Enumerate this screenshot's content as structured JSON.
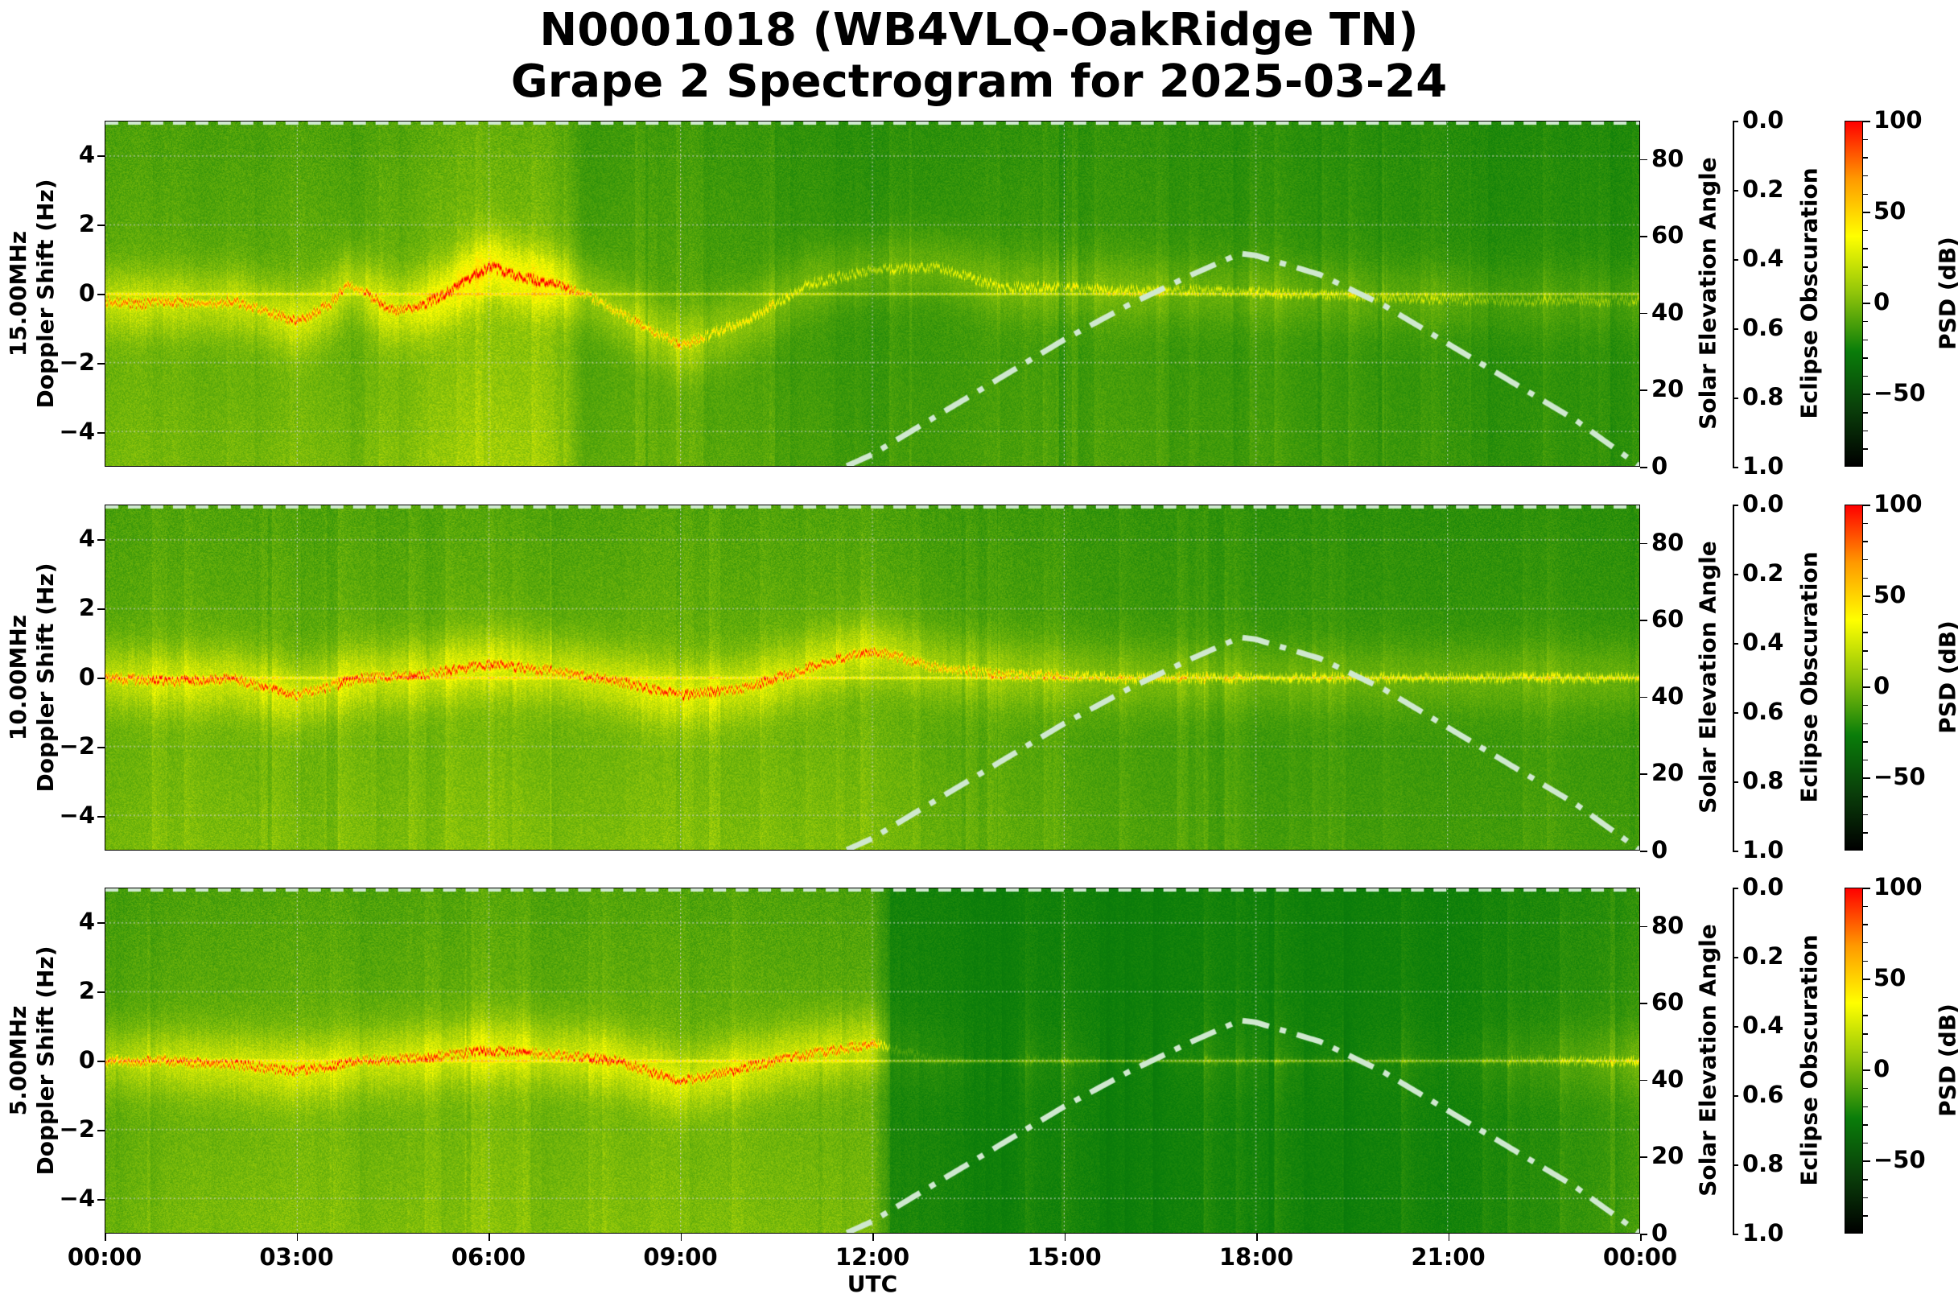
{
  "title": {
    "line1": "N0001018 (WB4VLQ-OakRidge TN)",
    "line2": "Grape 2 Spectrogram for 2025-03-24"
  },
  "colors": {
    "base_green": "#0a7d0a",
    "solar_curve": "#cfe8cf",
    "grid": "#d0d0d0",
    "colormap": [
      "#000000",
      "#0a3f0a",
      "#0a7d0a",
      "#8fc40a",
      "#ffff00",
      "#ff9900",
      "#ff0000"
    ]
  },
  "chart_data": [
    {
      "type": "heatmap",
      "panel": "15.00MHz",
      "ylabel_line1": "15.00MHz",
      "ylabel_line2": "Doppler Shift (Hz)",
      "y_ticks": [
        4,
        2,
        0,
        -2,
        -4
      ],
      "y_tick_labels": [
        "4",
        "2",
        "0",
        "−2",
        "−4"
      ],
      "ylim": [
        -5,
        5
      ],
      "right_axis_label": "Solar Elevation Angle",
      "right_ticks": [
        80,
        60,
        40,
        20,
        0
      ],
      "right_ylim": [
        0,
        90
      ],
      "eclipse_label": "Eclipse Obscuration",
      "eclipse_ticks": [
        "0.0",
        "0.2",
        "0.4",
        "0.6",
        "0.8",
        "1.0"
      ],
      "colorbar_label": "PSD (dB)",
      "colorbar_ticks": [
        "100",
        "50",
        "0",
        "−50"
      ],
      "colorbar_range": [
        -90,
        100
      ],
      "activity_hours": [
        0,
        0.5,
        1,
        2,
        3,
        4,
        5,
        6,
        7,
        7.5,
        8,
        9,
        10,
        11,
        12,
        13,
        14,
        15,
        16,
        17,
        18,
        19,
        20,
        21,
        22,
        23,
        24
      ],
      "activity_level": [
        0.55,
        0.6,
        0.55,
        0.55,
        0.6,
        0.55,
        0.7,
        0.8,
        0.75,
        0.4,
        0.45,
        0.5,
        0.4,
        0.35,
        0.25,
        0.3,
        0.35,
        0.3,
        0.35,
        0.3,
        0.3,
        0.25,
        0.25,
        0.25,
        0.2,
        0.2,
        0.2
      ],
      "trace_hours": [
        0,
        0.5,
        1,
        1.5,
        2,
        2.5,
        3,
        3.5,
        3.8,
        4,
        4.5,
        5,
        5.5,
        6,
        6.5,
        7,
        7.5,
        8,
        9,
        10,
        11,
        12,
        13,
        14,
        15,
        16,
        17,
        18,
        19,
        20,
        21,
        22,
        23,
        24
      ],
      "trace_hz": [
        -0.2,
        -0.3,
        -0.2,
        -0.3,
        -0.2,
        -0.5,
        -0.8,
        -0.3,
        0.3,
        0.1,
        -0.5,
        -0.3,
        0.2,
        0.8,
        0.5,
        0.3,
        0.0,
        -0.5,
        -1.5,
        -0.8,
        0.3,
        0.7,
        0.8,
        0.2,
        0.2,
        0.1,
        0.1,
        0.05,
        0.0,
        -0.1,
        -0.15,
        -0.2,
        -0.2,
        -0.2
      ],
      "solar_elevation": {
        "hours": [
          11.6,
          12,
          13,
          14,
          15,
          16,
          17,
          17.75,
          18,
          19,
          20,
          21,
          22,
          23,
          24
        ],
        "deg": [
          0,
          3,
          13,
          23,
          33,
          42,
          50,
          55.5,
          55,
          50,
          42,
          32,
          22,
          12,
          0
        ]
      }
    },
    {
      "type": "heatmap",
      "panel": "10.00MHz",
      "ylabel_line1": "10.00MHz",
      "ylabel_line2": "Doppler Shift (Hz)",
      "y_ticks": [
        4,
        2,
        0,
        -2,
        -4
      ],
      "y_tick_labels": [
        "4",
        "2",
        "0",
        "−2",
        "−4"
      ],
      "ylim": [
        -5,
        5
      ],
      "right_axis_label": "Solar Elevation Angle",
      "right_ticks": [
        80,
        60,
        40,
        20,
        0
      ],
      "right_ylim": [
        0,
        90
      ],
      "eclipse_label": "Eclipse Obscuration",
      "eclipse_ticks": [
        "0.0",
        "0.2",
        "0.4",
        "0.6",
        "0.8",
        "1.0"
      ],
      "colorbar_label": "PSD (dB)",
      "colorbar_ticks": [
        "100",
        "50",
        "0",
        "−50"
      ],
      "colorbar_range": [
        -90,
        100
      ],
      "activity_hours": [
        0,
        1,
        2,
        3,
        4,
        5,
        6,
        7,
        8,
        9,
        10,
        11,
        12,
        13,
        14,
        15,
        16,
        17,
        18,
        19,
        20,
        21,
        22,
        23,
        24
      ],
      "activity_level": [
        0.55,
        0.6,
        0.6,
        0.6,
        0.6,
        0.6,
        0.65,
        0.6,
        0.6,
        0.65,
        0.6,
        0.6,
        0.6,
        0.5,
        0.45,
        0.4,
        0.35,
        0.35,
        0.3,
        0.3,
        0.3,
        0.3,
        0.3,
        0.3,
        0.3
      ],
      "trace_hours": [
        0,
        1,
        2,
        2.5,
        3,
        4,
        5,
        6,
        7,
        8,
        9,
        10,
        11,
        12,
        13,
        14,
        15,
        16,
        17,
        18,
        19,
        20,
        21,
        22,
        23,
        24
      ],
      "trace_hz": [
        0.0,
        -0.1,
        0.0,
        -0.3,
        -0.5,
        0.0,
        0.1,
        0.4,
        0.2,
        -0.1,
        -0.5,
        -0.3,
        0.3,
        0.8,
        0.3,
        0.1,
        0.05,
        0.0,
        0.0,
        0.0,
        0.0,
        0.0,
        0.0,
        0.0,
        0.0,
        0.0
      ],
      "solar_elevation": {
        "hours": [
          11.6,
          12,
          13,
          14,
          15,
          16,
          17,
          17.75,
          18,
          19,
          20,
          21,
          22,
          23,
          24
        ],
        "deg": [
          0,
          3,
          13,
          23,
          33,
          42,
          50,
          55.5,
          55,
          50,
          42,
          32,
          22,
          12,
          0
        ]
      }
    },
    {
      "type": "heatmap",
      "panel": "5.00MHz",
      "ylabel_line1": "5.00MHz",
      "ylabel_line2": "Doppler Shift (Hz)",
      "y_ticks": [
        4,
        2,
        0,
        -2,
        -4
      ],
      "y_tick_labels": [
        "4",
        "2",
        "0",
        "−2",
        "−4"
      ],
      "ylim": [
        -5,
        5
      ],
      "right_axis_label": "Solar Elevation Angle",
      "right_ticks": [
        80,
        60,
        40,
        20,
        0
      ],
      "right_ylim": [
        0,
        90
      ],
      "eclipse_label": "Eclipse Obscuration",
      "eclipse_ticks": [
        "0.0",
        "0.2",
        "0.4",
        "0.6",
        "0.8",
        "1.0"
      ],
      "colorbar_label": "PSD (dB)",
      "colorbar_ticks": [
        "100",
        "50",
        "0",
        "−50"
      ],
      "colorbar_range": [
        -90,
        100
      ],
      "activity_hours": [
        0,
        1,
        2,
        3,
        4,
        5,
        6,
        7,
        8,
        9,
        10,
        11,
        12,
        12.3,
        13,
        14,
        15,
        16,
        17,
        18,
        19,
        20,
        21,
        22,
        23,
        24
      ],
      "activity_level": [
        0.5,
        0.6,
        0.6,
        0.65,
        0.6,
        0.6,
        0.65,
        0.6,
        0.6,
        0.65,
        0.6,
        0.6,
        0.6,
        0.15,
        0.1,
        0.05,
        0.05,
        0.05,
        0.05,
        0.05,
        0.05,
        0.05,
        0.05,
        0.1,
        0.2,
        0.35
      ],
      "trace_hours": [
        0,
        1,
        2,
        3,
        4,
        5,
        6,
        7,
        8,
        9,
        10,
        11,
        12,
        13,
        14,
        15,
        16,
        17,
        18,
        19,
        20,
        21,
        22,
        23,
        24
      ],
      "trace_hz": [
        0.0,
        0.0,
        -0.1,
        -0.3,
        0.0,
        0.1,
        0.3,
        0.2,
        0.0,
        -0.6,
        -0.2,
        0.2,
        0.5,
        0.0,
        0.0,
        0.0,
        0.0,
        0.0,
        0.0,
        0.0,
        0.0,
        0.0,
        0.0,
        0.0,
        0.0
      ],
      "solar_elevation": {
        "hours": [
          11.6,
          12,
          13,
          14,
          15,
          16,
          17,
          17.75,
          18,
          19,
          20,
          21,
          22,
          23,
          24
        ],
        "deg": [
          0,
          3,
          13,
          23,
          33,
          42,
          50,
          55.5,
          55,
          50,
          42,
          32,
          22,
          12,
          0
        ]
      }
    }
  ],
  "x_axis": {
    "label": "UTC",
    "ticks": [
      "00:00",
      "03:00",
      "06:00",
      "09:00",
      "12:00",
      "15:00",
      "18:00",
      "21:00",
      "00:00"
    ],
    "xlim_hours": [
      0,
      24
    ]
  }
}
